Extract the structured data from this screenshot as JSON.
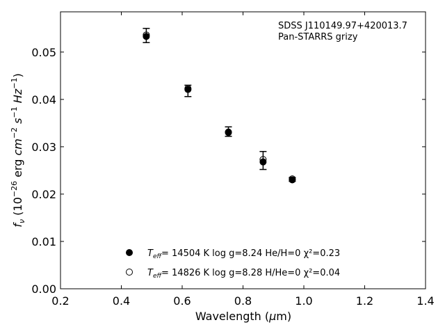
{
  "chart_data": {
    "type": "scatter",
    "xlabel": "Wavelength (μm)",
    "ylabel": "f_ν (10^-26 erg cm^-2 s^-1 Hz^-1)",
    "xlim": [
      0.2,
      1.4
    ],
    "ylim": [
      0.0,
      0.0585
    ],
    "x_ticks": [
      "0.2",
      "0.4",
      "0.6",
      "0.8",
      "1.0",
      "1.2",
      "1.4"
    ],
    "y_ticks": [
      "0.00",
      "0.01",
      "0.02",
      "0.03",
      "0.04",
      "0.05"
    ],
    "x_tick_values": [
      0.2,
      0.4,
      0.6,
      0.8,
      1.0,
      1.2,
      1.4
    ],
    "y_tick_values": [
      0.0,
      0.01,
      0.02,
      0.03,
      0.04,
      0.05
    ],
    "annotation_lines": [
      "SDSS J110149.97+420013.7",
      "Pan-STARRS grizy"
    ],
    "grid": false,
    "legend_position": "bottom-center",
    "observed": {
      "x": [
        0.482,
        0.619,
        0.752,
        0.866,
        0.962
      ],
      "y": [
        0.0535,
        0.0418,
        0.0332,
        0.0271,
        0.0231
      ],
      "yerr": [
        0.0015,
        0.0012,
        0.001,
        0.0019,
        0.0004
      ]
    },
    "series": [
      {
        "marker": "filled",
        "legend": {
          "teff": "= 14504 K",
          "rest": "  log g=8.24  He/H=0  χ²=0.23"
        },
        "x": [
          0.482,
          0.619,
          0.752,
          0.866,
          0.962
        ],
        "y": [
          0.0533,
          0.0421,
          0.033,
          0.0268,
          0.023
        ]
      },
      {
        "marker": "open",
        "legend": {
          "teff": "= 14826 K",
          "rest": "  log g=8.28  H/He=0  χ²=0.04"
        },
        "x": [
          0.482,
          0.619,
          0.752,
          0.866,
          0.962
        ],
        "y": [
          0.0536,
          0.0423,
          0.0331,
          0.0273,
          0.0232
        ]
      }
    ]
  }
}
